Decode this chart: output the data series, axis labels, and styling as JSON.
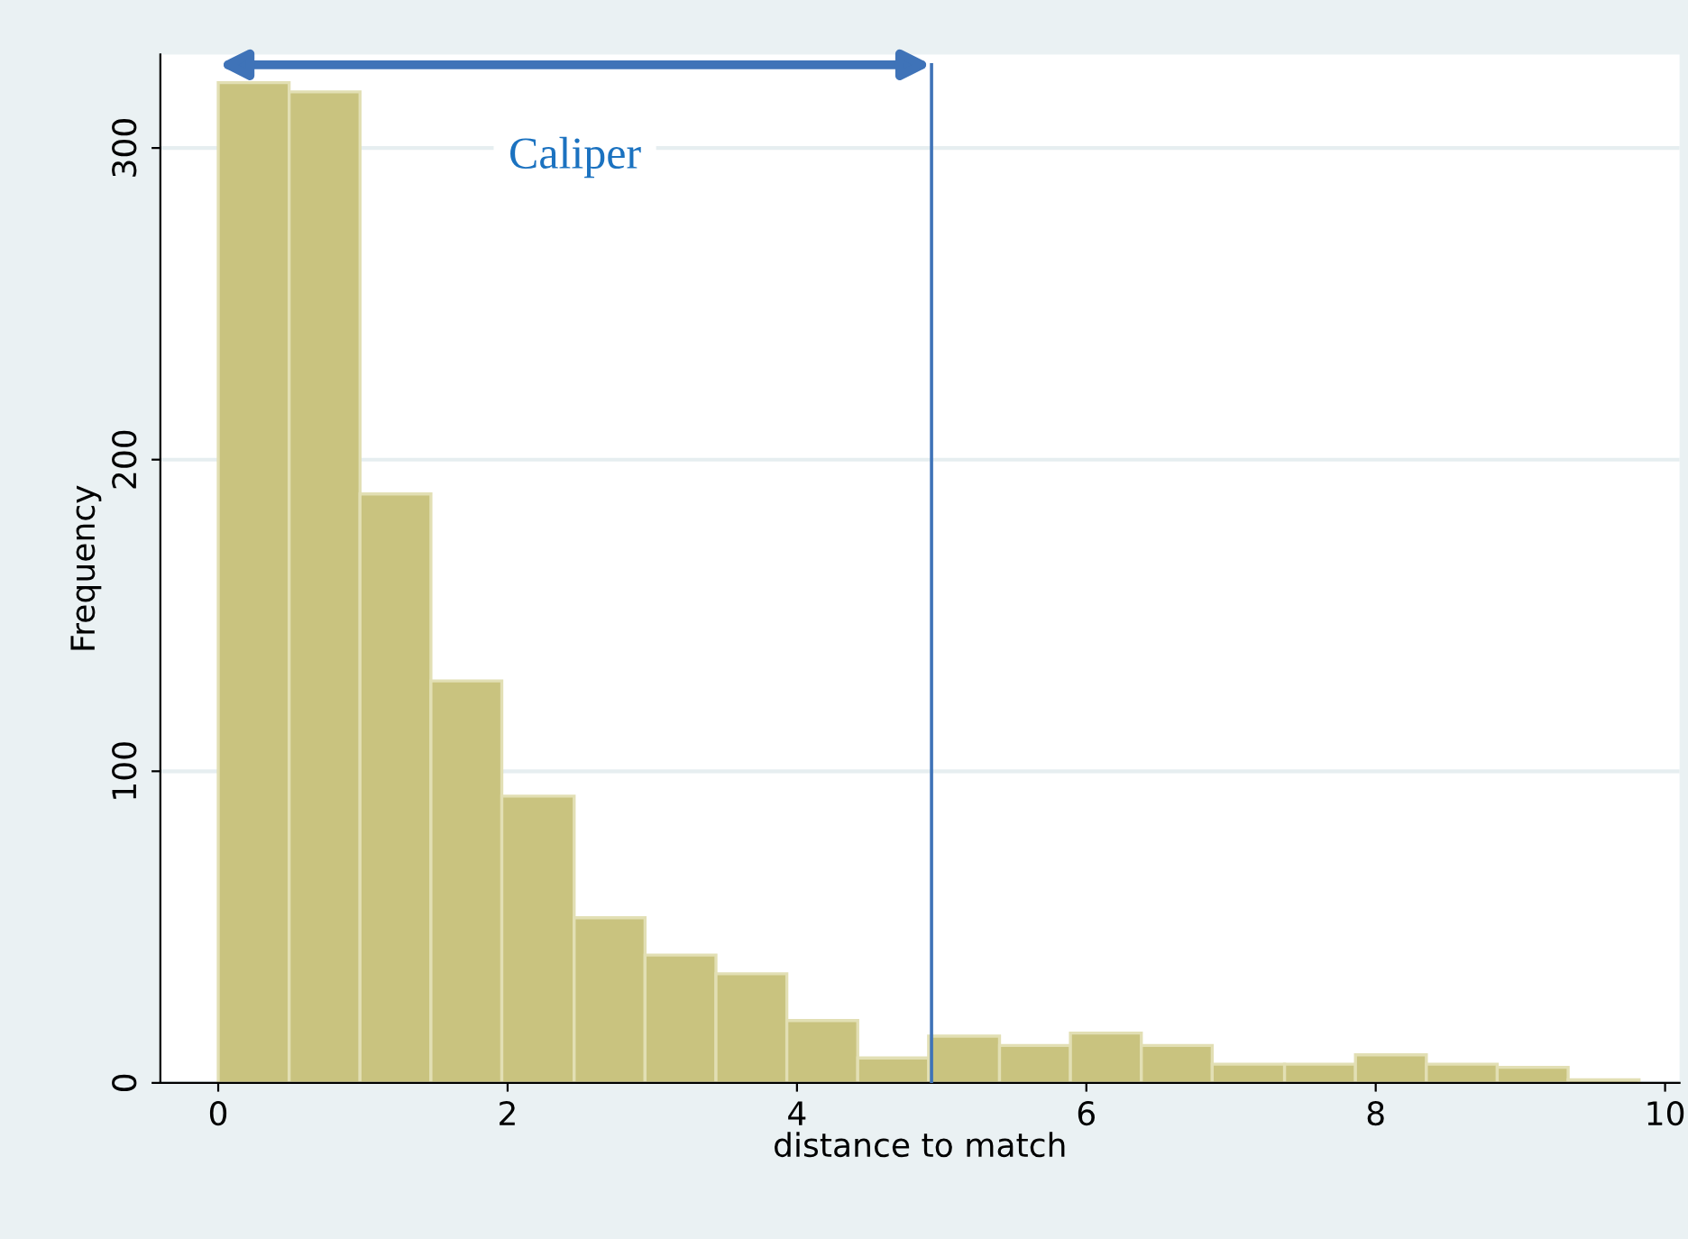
{
  "chart_data": {
    "type": "histogram",
    "xlabel": "distance to match",
    "ylabel": "Frequency",
    "bins": [
      0,
      0.49,
      0.98,
      1.47,
      1.96,
      2.46,
      2.95,
      3.44,
      3.93,
      4.42,
      4.91,
      5.4,
      5.89,
      6.38,
      6.87,
      7.37,
      7.86,
      8.35,
      8.84,
      9.33,
      9.82
    ],
    "values": [
      321,
      318,
      189,
      129,
      92,
      53,
      41,
      35,
      20,
      8,
      15,
      12,
      16,
      12,
      6,
      6,
      9,
      6,
      5,
      1
    ],
    "color": "#c9c37f",
    "xlim": [
      -0.4,
      10.1
    ],
    "ylim": [
      0,
      330
    ],
    "xticks": [
      0,
      2,
      4,
      6,
      8,
      10
    ],
    "yticks": [
      0,
      100,
      200,
      300
    ],
    "grid": "y",
    "ref_lines": [
      {
        "axis": "x",
        "value": 4.93,
        "label": "Caliper",
        "color": "#3f73b8"
      }
    ]
  }
}
